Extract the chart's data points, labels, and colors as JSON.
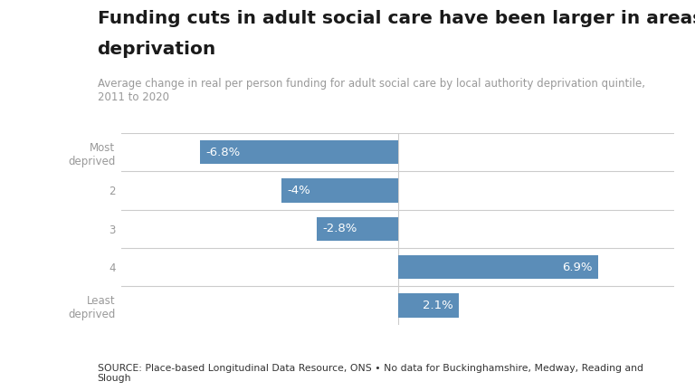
{
  "title_line1": "Funding cuts in adult social care have been larger in areas with higher",
  "title_line2": "deprivation",
  "subtitle": "Average change in real per person funding for adult social care by local authority deprivation quintile,\n2011 to 2020",
  "source": "SOURCE: Place-based Longitudinal Data Resource, ONS • No data for Buckinghamshire, Medway, Reading and\nSlough",
  "categories": [
    "Most\ndeprived",
    "2",
    "3",
    "4",
    "Least\ndeprived"
  ],
  "values": [
    -6.8,
    -4.0,
    -2.8,
    6.9,
    2.1
  ],
  "labels": [
    "-6.8%",
    "-4%",
    "-2.8%",
    "6.9%",
    "2.1%"
  ],
  "bar_color": "#5b8db8",
  "bar_height": 0.62,
  "xlim": [
    -9.5,
    9.5
  ],
  "background_color": "#ffffff",
  "title_fontsize": 14.5,
  "subtitle_fontsize": 8.5,
  "source_fontsize": 7.8,
  "label_fontsize": 9.5,
  "tick_fontsize": 8.5,
  "title_color": "#1a1a1a",
  "subtitle_color": "#999999",
  "source_color": "#333333",
  "tick_color": "#999999",
  "grid_color": "#cccccc",
  "label_color": "#ffffff"
}
